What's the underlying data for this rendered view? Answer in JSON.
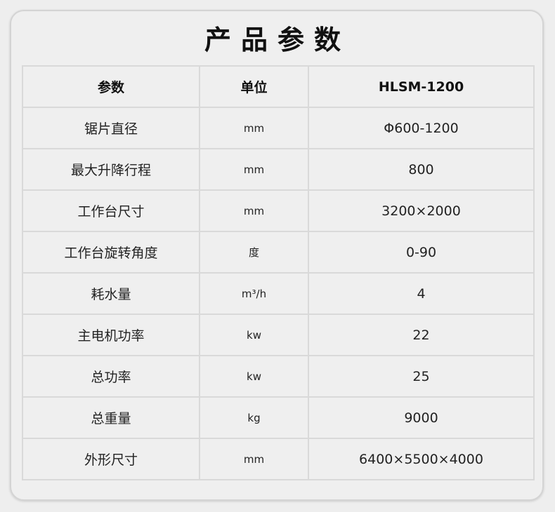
{
  "title": "产品参数",
  "headers": {
    "param": "参数",
    "unit": "单位",
    "model": "HLSM-1200"
  },
  "rows": [
    {
      "param": "锯片直径",
      "unit": "mm",
      "value": "Φ600-1200"
    },
    {
      "param": "最大升降行程",
      "unit": "mm",
      "value": "800"
    },
    {
      "param": "工作台尺寸",
      "unit": "mm",
      "value": "3200×2000"
    },
    {
      "param": "工作台旋转角度",
      "unit": "度",
      "value": "0-90"
    },
    {
      "param": "耗水量",
      "unit": "m³/h",
      "value": "4"
    },
    {
      "param": "主电机功率",
      "unit": "kw",
      "value": "22"
    },
    {
      "param": "总功率",
      "unit": "kw",
      "value": "25"
    },
    {
      "param": "总重量",
      "unit": "kg",
      "value": "9000"
    },
    {
      "param": "外形尺寸",
      "unit": "mm",
      "value": "6400×5500×4000"
    }
  ]
}
